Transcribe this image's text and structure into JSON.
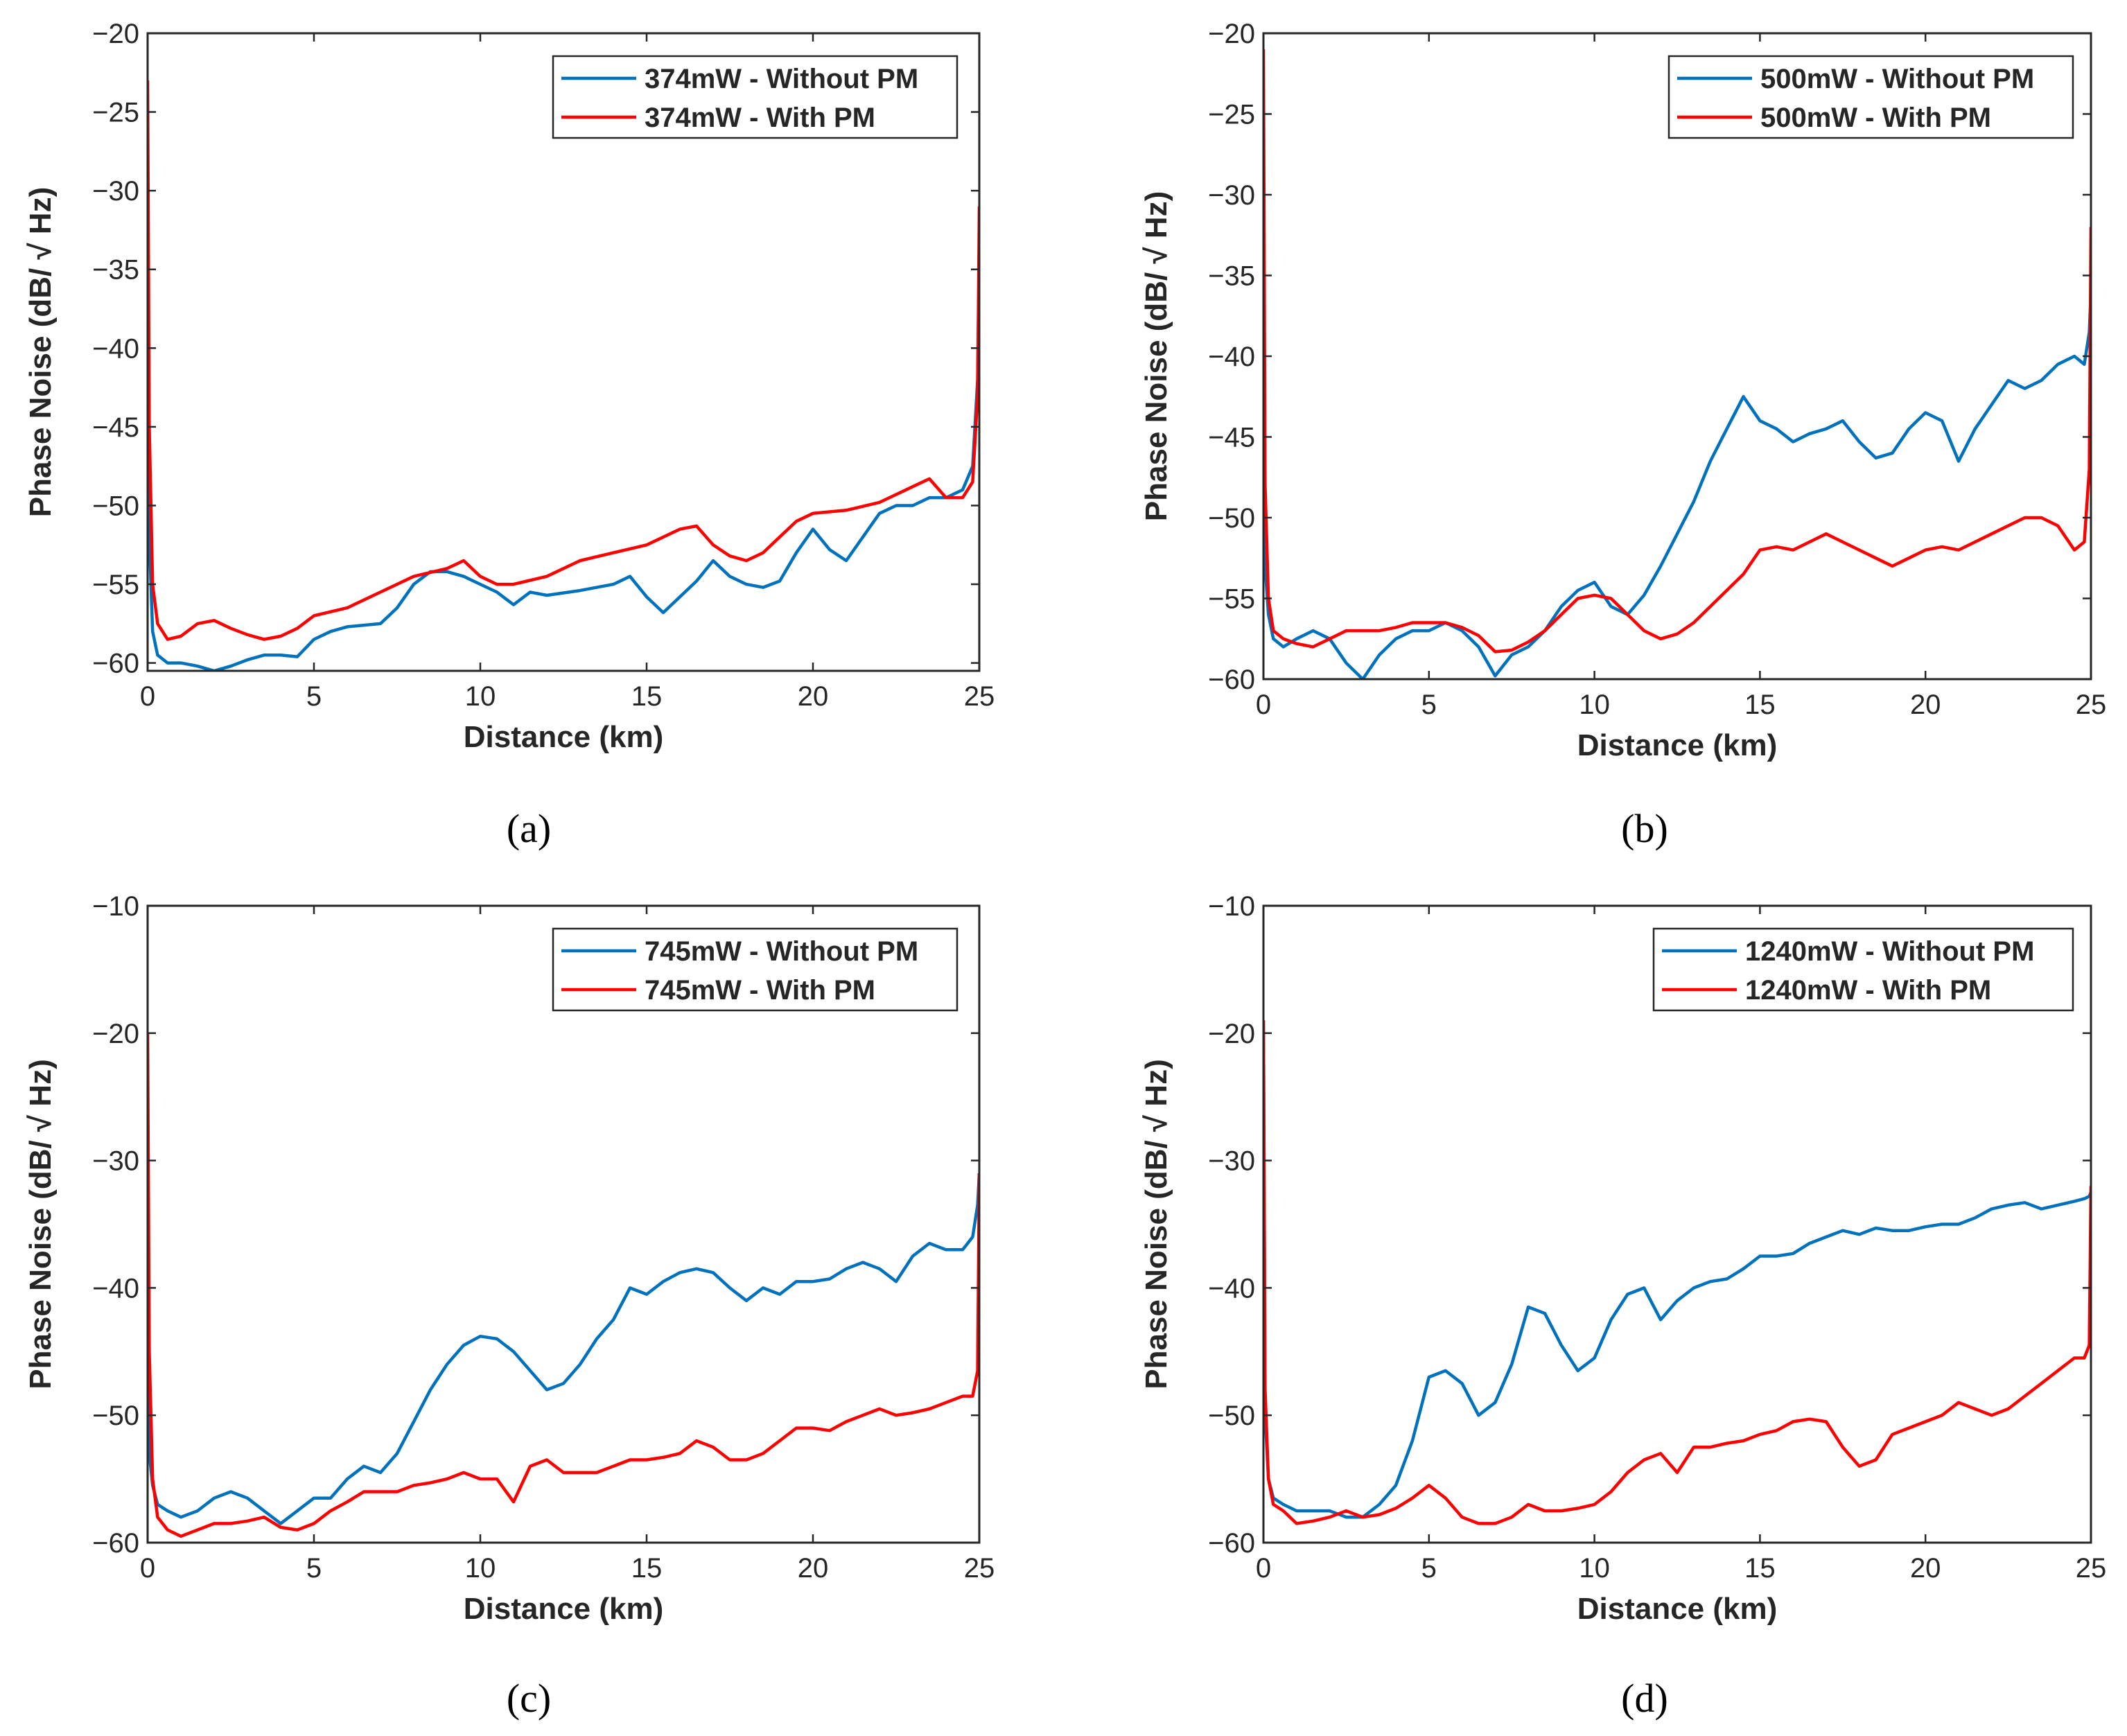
{
  "chart_data": [
    {
      "type": "line",
      "caption": "(a)",
      "xlabel": "Distance (km)",
      "ylabel": "Phase Noise (dB/ √ Hz)",
      "xlim": [
        0,
        25
      ],
      "ylim": [
        -60.5,
        -20
      ],
      "xticks": [
        0,
        5,
        10,
        15,
        20,
        25
      ],
      "yticks": [
        -20,
        -25,
        -30,
        -35,
        -40,
        -45,
        -50,
        -55,
        -60
      ],
      "xtick_labels": [
        "0",
        "5",
        "10",
        "15",
        "20",
        "25"
      ],
      "ytick_labels": [
        "−20",
        "−25",
        "−30",
        "−35",
        "−40",
        "−45",
        "−50",
        "−55",
        "−60"
      ],
      "grid": false,
      "legend_position": "top-right",
      "series": [
        {
          "name": "374mW - Without PM",
          "color": "#0072BD",
          "x": [
            0,
            0.05,
            0.15,
            0.3,
            0.6,
            1,
            1.5,
            2,
            2.5,
            3,
            3.5,
            4,
            4.5,
            5,
            5.5,
            6,
            7,
            7.5,
            8,
            8.5,
            9,
            9.5,
            10,
            10.5,
            11,
            11.5,
            12,
            13,
            14,
            14.5,
            15,
            15.5,
            16,
            16.5,
            17,
            17.5,
            18,
            18.5,
            19,
            19.5,
            20,
            20.5,
            21,
            21.5,
            22,
            22.5,
            23,
            23.5,
            24,
            24.5,
            24.8,
            24.95,
            25
          ],
          "y": [
            -37,
            -52,
            -58,
            -59.5,
            -60,
            -60,
            -60.2,
            -60.5,
            -60.2,
            -59.8,
            -59.5,
            -59.5,
            -59.6,
            -58.5,
            -58,
            -57.7,
            -57.5,
            -56.5,
            -55,
            -54.2,
            -54.2,
            -54.5,
            -55,
            -55.5,
            -56.3,
            -55.5,
            -55.7,
            -55.4,
            -55,
            -54.5,
            -55.8,
            -56.8,
            -55.8,
            -54.8,
            -53.5,
            -54.5,
            -55,
            -55.2,
            -54.8,
            -53,
            -51.5,
            -52.8,
            -53.5,
            -52,
            -50.5,
            -50,
            -50,
            -49.5,
            -49.5,
            -49,
            -47.5,
            -42,
            -34
          ]
        },
        {
          "name": "374mW - With PM",
          "color": "#FF0000",
          "x": [
            0,
            0.05,
            0.15,
            0.3,
            0.6,
            1,
            1.5,
            2,
            2.5,
            3,
            3.5,
            4,
            4.5,
            5,
            6,
            7,
            8,
            9,
            9.5,
            10,
            10.5,
            11,
            12,
            13,
            14,
            15,
            16,
            16.5,
            17,
            17.5,
            18,
            18.5,
            19,
            19.5,
            20,
            21,
            22,
            23,
            23.5,
            24,
            24.5,
            24.8,
            24.95,
            25
          ],
          "y": [
            -23,
            -45,
            -55,
            -57.5,
            -58.5,
            -58.3,
            -57.5,
            -57.3,
            -57.8,
            -58.2,
            -58.5,
            -58.3,
            -57.8,
            -57,
            -56.5,
            -55.5,
            -54.5,
            -54,
            -53.5,
            -54.5,
            -55,
            -55,
            -54.5,
            -53.5,
            -53,
            -52.5,
            -51.5,
            -51.3,
            -52.5,
            -53.2,
            -53.5,
            -53,
            -52,
            -51,
            -50.5,
            -50.3,
            -49.8,
            -48.8,
            -48.3,
            -49.5,
            -49.5,
            -48.5,
            -43,
            -31
          ]
        }
      ]
    },
    {
      "type": "line",
      "caption": "(b)",
      "xlabel": "Distance (km)",
      "ylabel": "Phase Noise (dB/ √ Hz)",
      "xlim": [
        0,
        25
      ],
      "ylim": [
        -60,
        -20
      ],
      "xticks": [
        0,
        5,
        10,
        15,
        20,
        25
      ],
      "yticks": [
        -20,
        -25,
        -30,
        -35,
        -40,
        -45,
        -50,
        -55,
        -60
      ],
      "xtick_labels": [
        "0",
        "5",
        "10",
        "15",
        "20",
        "25"
      ],
      "ytick_labels": [
        "−20",
        "−25",
        "−30",
        "−35",
        "−40",
        "−45",
        "−50",
        "−55",
        "−60"
      ],
      "grid": false,
      "legend_position": "top-right",
      "series": [
        {
          "name": "500mW - Without PM",
          "color": "#0072BD",
          "x": [
            0,
            0.05,
            0.15,
            0.3,
            0.6,
            1,
            1.5,
            2,
            2.5,
            3,
            3.5,
            4,
            4.5,
            5,
            5.5,
            6,
            6.5,
            7,
            7.5,
            8,
            8.5,
            9,
            9.5,
            10,
            10.5,
            11,
            11.5,
            12,
            12.5,
            13,
            13.5,
            14,
            14.5,
            15,
            15.5,
            16,
            16.5,
            17,
            17.5,
            18,
            18.5,
            19,
            19.5,
            20,
            20.5,
            21,
            21.5,
            22,
            22.5,
            23,
            23.5,
            24,
            24.5,
            24.8,
            24.95,
            25
          ],
          "y": [
            -44,
            -53,
            -56,
            -57.5,
            -58,
            -57.5,
            -57,
            -57.5,
            -59,
            -60,
            -58.5,
            -57.5,
            -57,
            -57,
            -56.5,
            -57,
            -58,
            -59.8,
            -58.5,
            -58,
            -57,
            -55.5,
            -54.5,
            -54,
            -55.5,
            -56,
            -54.8,
            -53,
            -51,
            -49,
            -46.5,
            -44.5,
            -42.5,
            -44,
            -44.5,
            -45.3,
            -44.8,
            -44.5,
            -44,
            -45.3,
            -46.3,
            -46,
            -44.5,
            -43.5,
            -44,
            -46.5,
            -44.5,
            -43,
            -41.5,
            -42,
            -41.5,
            -40.5,
            -40,
            -40.5,
            -38.5,
            -36
          ]
        },
        {
          "name": "500mW - With PM",
          "color": "#FF0000",
          "x": [
            0,
            0.05,
            0.15,
            0.3,
            0.6,
            1,
            1.5,
            2,
            2.5,
            3,
            3.5,
            4,
            4.5,
            5,
            5.5,
            6,
            6.5,
            7,
            7.5,
            8,
            8.5,
            9,
            9.5,
            10,
            10.5,
            11,
            11.5,
            12,
            12.5,
            13,
            13.5,
            14,
            14.5,
            15,
            15.5,
            16,
            16.5,
            17,
            17.5,
            18,
            18.5,
            19,
            19.5,
            20,
            20.5,
            21,
            21.5,
            22,
            22.5,
            23,
            23.5,
            24,
            24.5,
            24.8,
            24.95,
            25
          ],
          "y": [
            -21,
            -48,
            -55,
            -57,
            -57.5,
            -57.8,
            -58,
            -57.5,
            -57,
            -57,
            -57,
            -56.8,
            -56.5,
            -56.5,
            -56.5,
            -56.8,
            -57.3,
            -58.3,
            -58.2,
            -57.7,
            -57,
            -56,
            -55,
            -54.8,
            -55,
            -56,
            -57,
            -57.5,
            -57.2,
            -56.5,
            -55.5,
            -54.5,
            -53.5,
            -52,
            -51.8,
            -52,
            -51.5,
            -51,
            -51.5,
            -52,
            -52.5,
            -53,
            -52.5,
            -52,
            -51.8,
            -52,
            -51.5,
            -51,
            -50.5,
            -50,
            -50,
            -50.5,
            -52,
            -51.5,
            -47,
            -32
          ]
        }
      ]
    },
    {
      "type": "line",
      "caption": "(c)",
      "xlabel": "Distance (km)",
      "ylabel": "Phase Noise (dB/ √ Hz)",
      "xlim": [
        0,
        25
      ],
      "ylim": [
        -60,
        -10
      ],
      "xticks": [
        0,
        5,
        10,
        15,
        20,
        25
      ],
      "yticks": [
        -10,
        -20,
        -30,
        -40,
        -50,
        -60
      ],
      "xtick_labels": [
        "0",
        "5",
        "10",
        "15",
        "20",
        "25"
      ],
      "ytick_labels": [
        "−10",
        "−20",
        "−30",
        "−40",
        "−50",
        "−60"
      ],
      "grid": false,
      "legend_position": "top-right",
      "series": [
        {
          "name": "745mW - Without PM",
          "color": "#0072BD",
          "x": [
            0,
            0.05,
            0.15,
            0.3,
            0.6,
            1,
            1.5,
            2,
            2.5,
            3,
            3.5,
            4,
            4.5,
            5,
            5.5,
            6,
            6.5,
            7,
            7.5,
            8,
            8.5,
            9,
            9.5,
            10,
            10.5,
            11,
            11.5,
            12,
            12.5,
            13,
            13.5,
            14,
            14.5,
            15,
            15.5,
            16,
            16.5,
            17,
            17.5,
            18,
            18.5,
            19,
            19.5,
            20,
            20.5,
            21,
            21.5,
            22,
            22.5,
            23,
            23.5,
            24,
            24.5,
            24.8,
            24.95,
            25
          ],
          "y": [
            -45,
            -53,
            -55.5,
            -57,
            -57.5,
            -58,
            -57.5,
            -56.5,
            -56,
            -56.5,
            -57.5,
            -58.5,
            -57.5,
            -56.5,
            -56.5,
            -55,
            -54,
            -54.5,
            -53,
            -50.5,
            -48,
            -46,
            -44.5,
            -43.8,
            -44,
            -45,
            -46.5,
            -48,
            -47.5,
            -46,
            -44,
            -42.5,
            -40,
            -40.5,
            -39.5,
            -38.8,
            -38.5,
            -38.8,
            -40,
            -41,
            -40,
            -40.5,
            -39.5,
            -39.5,
            -39.3,
            -38.5,
            -38,
            -38.5,
            -39.5,
            -37.5,
            -36.5,
            -37,
            -37,
            -36,
            -33.5,
            -31
          ]
        },
        {
          "name": "745mW - With PM",
          "color": "#FF0000",
          "x": [
            0,
            0.05,
            0.15,
            0.3,
            0.6,
            1,
            1.5,
            2,
            2.5,
            3,
            3.5,
            4,
            4.5,
            5,
            5.5,
            6,
            6.5,
            7,
            7.5,
            8,
            8.5,
            9,
            9.5,
            10,
            10.5,
            11,
            11.5,
            12,
            12.5,
            13,
            13.5,
            14,
            14.5,
            15,
            15.5,
            16,
            16.5,
            17,
            17.5,
            18,
            18.5,
            19,
            19.5,
            20,
            20.5,
            21,
            21.5,
            22,
            22.5,
            23,
            23.5,
            24,
            24.5,
            24.8,
            24.95,
            25
          ],
          "y": [
            -20,
            -45,
            -55,
            -58,
            -59,
            -59.5,
            -59,
            -58.5,
            -58.5,
            -58.3,
            -58,
            -58.8,
            -59,
            -58.5,
            -57.5,
            -56.8,
            -56,
            -56,
            -56,
            -55.5,
            -55.3,
            -55,
            -54.5,
            -55,
            -55,
            -56.8,
            -54,
            -53.5,
            -54.5,
            -54.5,
            -54.5,
            -54,
            -53.5,
            -53.5,
            -53.3,
            -53,
            -52,
            -52.5,
            -53.5,
            -53.5,
            -53,
            -52,
            -51,
            -51,
            -51.2,
            -50.5,
            -50,
            -49.5,
            -50,
            -49.8,
            -49.5,
            -49,
            -48.5,
            -48.5,
            -46.5,
            -31
          ]
        }
      ]
    },
    {
      "type": "line",
      "caption": "(d)",
      "xlabel": "Distance (km)",
      "ylabel": "Phase Noise (dB/ √ Hz)",
      "xlim": [
        0,
        25
      ],
      "ylim": [
        -60,
        -10
      ],
      "xticks": [
        0,
        5,
        10,
        15,
        20,
        25
      ],
      "yticks": [
        -10,
        -20,
        -30,
        -40,
        -50,
        -60
      ],
      "xtick_labels": [
        "0",
        "5",
        "10",
        "15",
        "20",
        "25"
      ],
      "ytick_labels": [
        "−10",
        "−20",
        "−30",
        "−40",
        "−50",
        "−60"
      ],
      "grid": false,
      "legend_position": "top-right",
      "series": [
        {
          "name": "1240mW - Without PM",
          "color": "#0072BD",
          "x": [
            0,
            0.05,
            0.15,
            0.3,
            0.6,
            1,
            1.5,
            2,
            2.5,
            3,
            3.5,
            4,
            4.5,
            5,
            5.5,
            6,
            6.5,
            7,
            7.5,
            8,
            8.5,
            9,
            9.5,
            10,
            10.5,
            11,
            11.5,
            12,
            12.5,
            13,
            13.5,
            14,
            14.5,
            15,
            15.5,
            16,
            16.5,
            17,
            17.5,
            18,
            18.5,
            19,
            19.5,
            20,
            20.5,
            21,
            21.5,
            22,
            22.5,
            23,
            23.5,
            24,
            24.5,
            24.8,
            24.95,
            25
          ],
          "y": [
            -19,
            -50,
            -55,
            -56.5,
            -57,
            -57.5,
            -57.5,
            -57.5,
            -58,
            -58,
            -57,
            -55.5,
            -52,
            -47,
            -46.5,
            -47.5,
            -50,
            -49,
            -46,
            -41.5,
            -42,
            -44.5,
            -46.5,
            -45.5,
            -42.5,
            -40.5,
            -40,
            -42.5,
            -41,
            -40,
            -39.5,
            -39.3,
            -38.5,
            -37.5,
            -37.5,
            -37.3,
            -36.5,
            -36,
            -35.5,
            -35.8,
            -35.3,
            -35.5,
            -35.5,
            -35.2,
            -35,
            -35,
            -34.5,
            -33.8,
            -33.5,
            -33.3,
            -33.8,
            -33.5,
            -33.2,
            -33,
            -32.8,
            -32.5
          ]
        },
        {
          "name": "1240mW - With PM",
          "color": "#FF0000",
          "x": [
            0,
            0.05,
            0.15,
            0.3,
            0.6,
            1,
            1.5,
            2,
            2.5,
            3,
            3.5,
            4,
            4.5,
            5,
            5.5,
            6,
            6.5,
            7,
            7.5,
            8,
            8.5,
            9,
            9.5,
            10,
            10.5,
            11,
            11.5,
            12,
            12.5,
            13,
            13.5,
            14,
            14.5,
            15,
            15.5,
            16,
            16.5,
            17,
            17.5,
            18,
            18.5,
            19,
            19.5,
            20,
            20.5,
            21,
            21.5,
            22,
            22.5,
            23,
            23.5,
            24,
            24.5,
            24.8,
            24.95,
            25
          ],
          "y": [
            -19,
            -48,
            -55,
            -57,
            -57.5,
            -58.5,
            -58.3,
            -58,
            -57.5,
            -58,
            -57.8,
            -57.3,
            -56.5,
            -55.5,
            -56.5,
            -58,
            -58.5,
            -58.5,
            -58,
            -57,
            -57.5,
            -57.5,
            -57.3,
            -57,
            -56,
            -54.5,
            -53.5,
            -53,
            -54.5,
            -52.5,
            -52.5,
            -52.2,
            -52,
            -51.5,
            -51.2,
            -50.5,
            -50.3,
            -50.5,
            -52.5,
            -54,
            -53.5,
            -51.5,
            -51,
            -50.5,
            -50,
            -49,
            -49.5,
            -50,
            -49.5,
            -48.5,
            -47.5,
            -46.5,
            -45.5,
            -45.5,
            -44.5,
            -32
          ]
        }
      ]
    }
  ]
}
